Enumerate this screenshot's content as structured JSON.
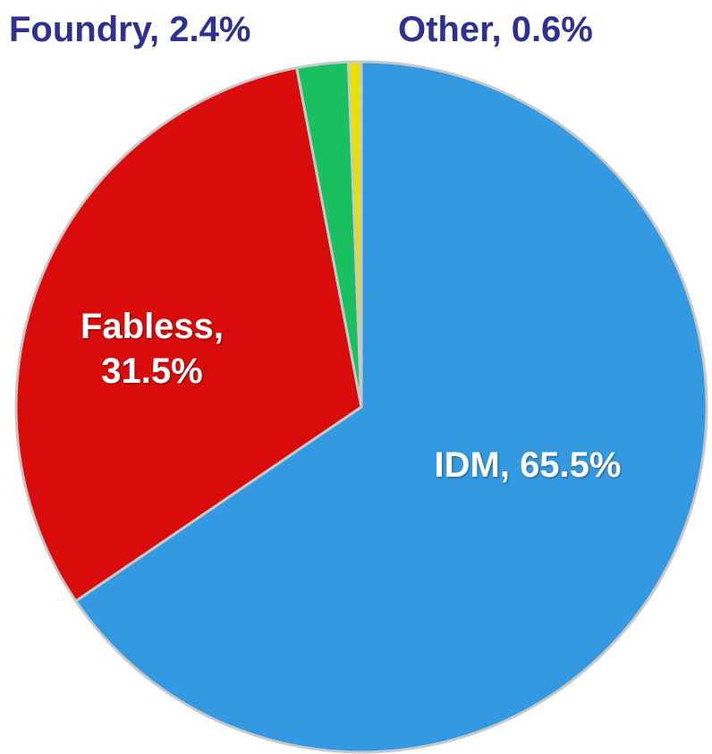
{
  "chart_data": {
    "type": "pie",
    "values": [
      65.5,
      31.5,
      2.4,
      0.6
    ],
    "value_labels": [
      "IDM, 65.5%",
      "Fabless, 31.5%",
      "Foundry, 2.4%",
      "Other, 0.6%"
    ],
    "colors": [
      "#3399e0",
      "#d90c0c",
      "#18c060",
      "#e8e000"
    ]
  }
}
